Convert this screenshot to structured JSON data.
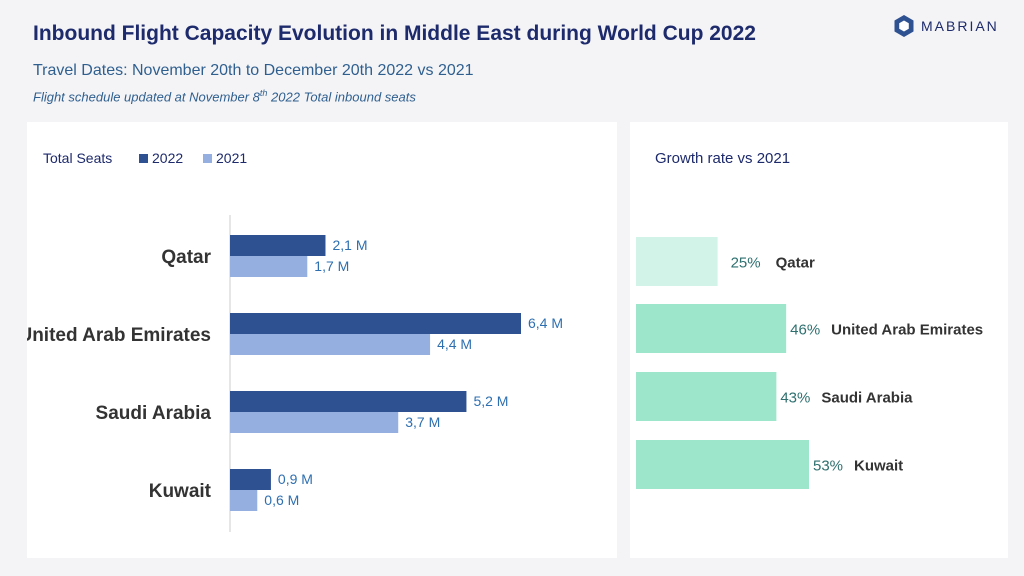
{
  "title": "Inbound Flight Capacity Evolution in Middle East during World Cup 2022",
  "subtitle": "Travel Dates: November 20th to December 20th 2022 vs 2021",
  "note": {
    "before": "Flight schedule updated at November 8",
    "sup": "th",
    "after": " 2022 Total inbound seats"
  },
  "brand": "MABRIAN",
  "colors": {
    "series_2022": "#2e5192",
    "series_2021": "#95b0e0",
    "growth_light": "#d2f3e7",
    "growth": "#9de6cc",
    "value_label": "#2e6fb0",
    "category_label": "#333333"
  },
  "chart_data": [
    {
      "type": "bar",
      "orientation": "horizontal",
      "title": "Total Seats",
      "categories": [
        "Qatar",
        "United Arab Emirates",
        "Saudi Arabia",
        "Kuwait"
      ],
      "series": [
        {
          "name": "2022",
          "values": [
            2.1,
            6.4,
            5.2,
            0.9
          ],
          "labels": [
            "2,1 M",
            "6,4 M",
            "5,2 M",
            "0,9 M"
          ]
        },
        {
          "name": "2021",
          "values": [
            1.7,
            4.4,
            3.7,
            0.6
          ],
          "labels": [
            "1,7 M",
            "4,4 M",
            "3,7 M",
            "0,6 M"
          ]
        }
      ],
      "unit": "M",
      "xlim": [
        0,
        7
      ],
      "legend": "top-left",
      "grid": false
    },
    {
      "type": "bar",
      "orientation": "horizontal",
      "title": "Growth rate vs 2021",
      "categories": [
        "Qatar",
        "United Arab Emirates",
        "Saudi Arabia",
        "Kuwait"
      ],
      "values": [
        25,
        46,
        43,
        53
      ],
      "labels": [
        "25%",
        "46%",
        "43%",
        "53%"
      ],
      "unit": "%",
      "xlim": [
        0,
        80
      ],
      "grid": false
    }
  ]
}
